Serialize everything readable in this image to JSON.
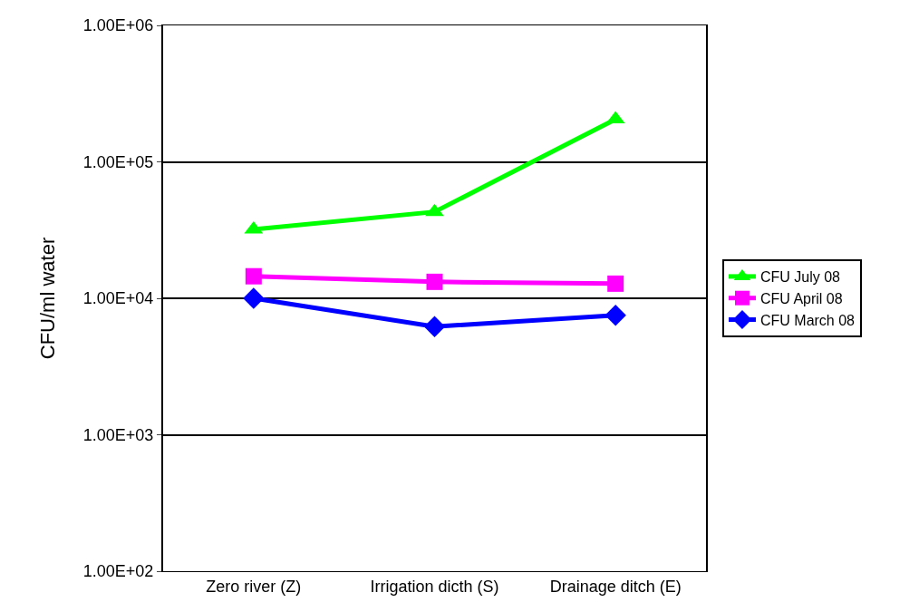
{
  "chart_data": {
    "type": "line",
    "ylabel": "CFU/ml water",
    "categories": [
      "Zero river (Z)",
      "Irrigation dicth (S)",
      "Drainage ditch (E)"
    ],
    "series": [
      {
        "name": "CFU July 08",
        "color": "#00ff00",
        "marker": "triangle",
        "values": [
          32000,
          43000,
          205000
        ]
      },
      {
        "name": "CFU April 08",
        "color": "#ff00ff",
        "marker": "square",
        "values": [
          14500,
          13200,
          12800
        ]
      },
      {
        "name": "CFU March 08",
        "color": "#0000ff",
        "marker": "diamond",
        "values": [
          10000,
          6200,
          7500
        ]
      }
    ],
    "log": "y",
    "ylim": [
      100,
      1000000
    ],
    "yticks": [
      {
        "value": 100,
        "label": "1.00E+02"
      },
      {
        "value": 1000,
        "label": "1.00E+03"
      },
      {
        "value": 10000,
        "label": "1.00E+04"
      },
      {
        "value": 100000,
        "label": "1.00E+05"
      },
      {
        "value": 1000000,
        "label": "1.00E+06"
      }
    ],
    "grid": "y",
    "legend": "right",
    "line_style": "solid"
  }
}
